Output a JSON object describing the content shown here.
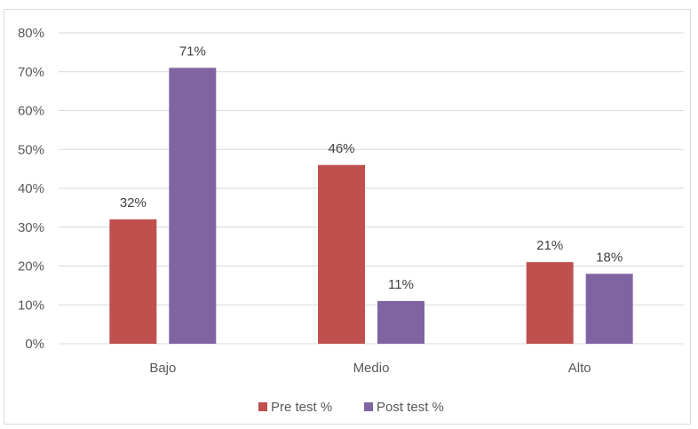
{
  "chart_data": {
    "type": "bar",
    "categories": [
      "Bajo",
      "Medio",
      "Alto"
    ],
    "series": [
      {
        "name": "Pre test %",
        "values": [
          32,
          46,
          21
        ],
        "labels": [
          "32%",
          "46%",
          "21%"
        ],
        "color": "#c0504d"
      },
      {
        "name": "Post test %",
        "values": [
          71,
          11,
          18
        ],
        "labels": [
          "71%",
          "11%",
          "18%"
        ],
        "color": "#8064a2"
      }
    ],
    "y_ticks": [
      "0%",
      "10%",
      "20%",
      "30%",
      "40%",
      "50%",
      "60%",
      "70%",
      "80%"
    ],
    "ylim": [
      0,
      80
    ],
    "grid": true,
    "legend_position": "bottom"
  }
}
